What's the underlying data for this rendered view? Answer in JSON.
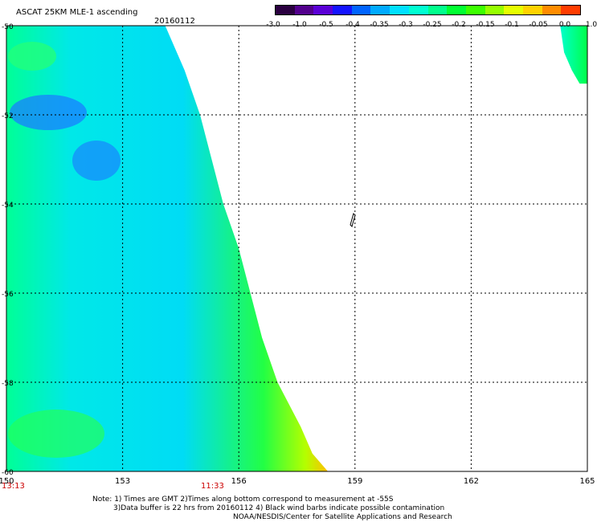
{
  "header": {
    "title": "ASCAT 25KM MLE-1 ascending",
    "date": "20160112"
  },
  "colorbar": {
    "colors": [
      "#2a0040",
      "#52008c",
      "#5a00d6",
      "#1414ff",
      "#0064ff",
      "#00aaff",
      "#00e0ff",
      "#00ffd2",
      "#00ff8c",
      "#00ff32",
      "#3cff00",
      "#96ff00",
      "#e6ff00",
      "#ffd200",
      "#ff8c00",
      "#ff3c00"
    ],
    "labels": [
      "-3.0",
      "-1.0",
      "-0.5",
      "-0.4",
      "-0.35",
      "-0.3",
      "-0.25",
      "-0.2",
      "-0.15",
      "-0.1",
      "-0.05",
      "0.0",
      "1.0"
    ]
  },
  "map": {
    "lat_labels": [
      "-50",
      "-52",
      "-54",
      "-56",
      "-58",
      "-60"
    ],
    "lon_labels": [
      "150",
      "153",
      "156",
      "159",
      "162",
      "165"
    ],
    "times": [
      "13:13",
      "11:33"
    ],
    "lat_range": [
      -60,
      -50
    ],
    "lon_range": [
      150,
      165
    ],
    "swath_edge": [
      {
        "lat": -50.0,
        "lon": 154.1
      },
      {
        "lat": -51.0,
        "lon": 154.6
      },
      {
        "lat": -52.0,
        "lon": 155.0
      },
      {
        "lat": -53.0,
        "lon": 155.3
      },
      {
        "lat": -54.0,
        "lon": 155.6
      },
      {
        "lat": -55.0,
        "lon": 156.0
      },
      {
        "lat": -56.0,
        "lon": 156.3
      },
      {
        "lat": -57.0,
        "lon": 156.6
      },
      {
        "lat": -58.0,
        "lon": 157.0
      },
      {
        "lat": -59.0,
        "lon": 157.6
      },
      {
        "lat": -59.6,
        "lon": 157.9
      },
      {
        "lat": -60.0,
        "lon": 158.3
      }
    ],
    "corner_swath": [
      {
        "lat": -50.0,
        "lon": 164.3
      },
      {
        "lat": -50.6,
        "lon": 164.4
      },
      {
        "lat": -51.0,
        "lon": 164.6
      },
      {
        "lat": -51.3,
        "lon": 164.8
      },
      {
        "lat": -51.3,
        "lon": 165.0
      },
      {
        "lat": -50.0,
        "lon": 165.0
      }
    ]
  },
  "notes": {
    "line1": "Note: 1) Times are GMT 2)Times along bottom correspond to measurement at -55S",
    "line2": "3)Data buffer is 22 hrs from 20160112 4) Black wind barbs indicate possible contamination",
    "line3": "NOAA/NESDIS/Center for Satellite Applications and Research"
  }
}
